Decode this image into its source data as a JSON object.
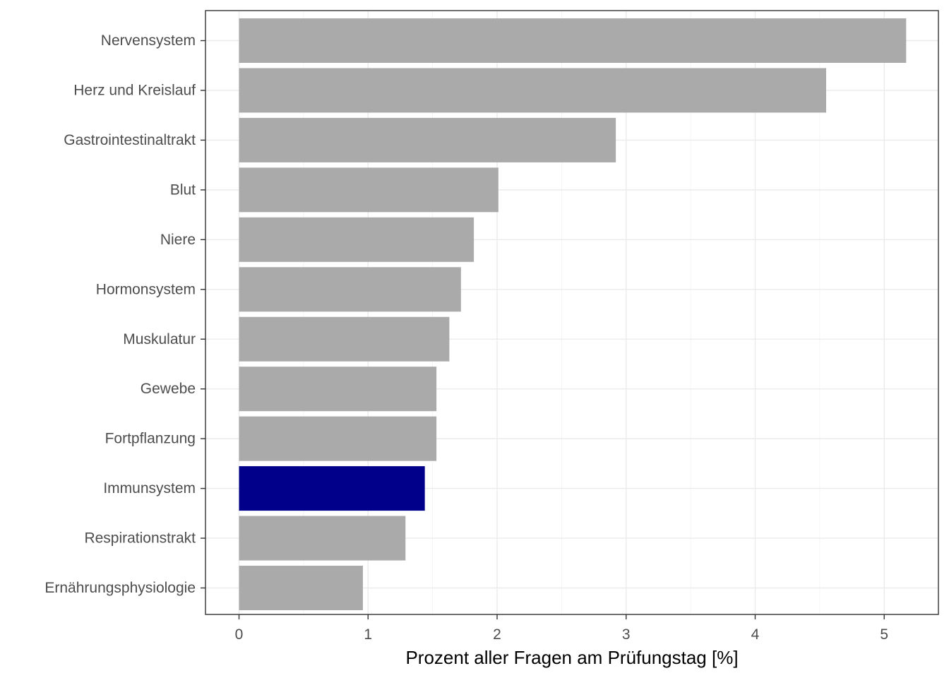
{
  "chart_data": {
    "type": "bar",
    "orientation": "horizontal",
    "categories": [
      "Nervensystem",
      "Herz und Kreislauf",
      "Gastrointestinaltrakt",
      "Blut",
      "Niere",
      "Hormonsystem",
      "Muskulatur",
      "Gewebe",
      "Fortpflanzung",
      "Immunsystem",
      "Respirationstrakt",
      "Ernährungsphysiologie"
    ],
    "values": [
      5.17,
      4.55,
      2.92,
      2.01,
      1.82,
      1.72,
      1.63,
      1.53,
      1.53,
      1.44,
      1.29,
      0.96
    ],
    "highlight_category": "Immunsystem",
    "colors": {
      "bar": "#aaaaaa",
      "highlight": "#00008b"
    },
    "xlabel": "Prozent aller Fragen am Prüfungstag [%]",
    "ylabel": "",
    "xlim": [
      -0.26,
      5.42
    ],
    "x_ticks": [
      0,
      1,
      2,
      3,
      4,
      5
    ],
    "x_tick_labels": [
      "0",
      "1",
      "2",
      "3",
      "4",
      "5"
    ],
    "grid": true,
    "legend": "none",
    "theme": "bw"
  }
}
